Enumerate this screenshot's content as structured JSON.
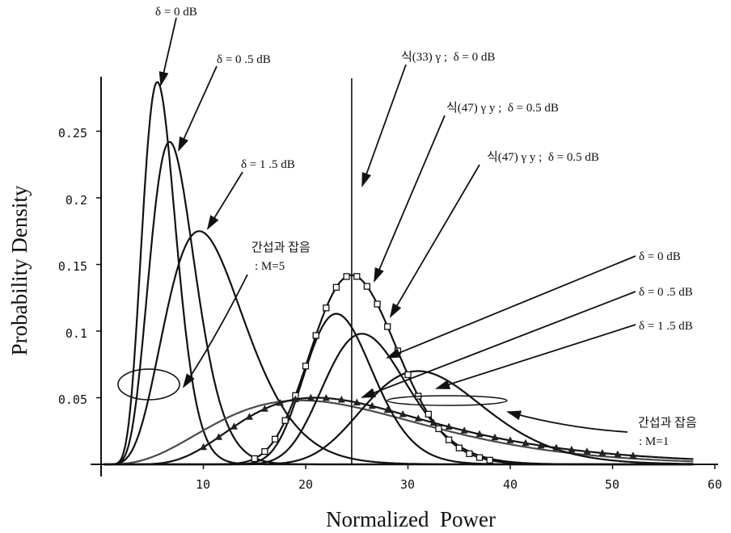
{
  "chart_data": {
    "type": "line",
    "title": "",
    "xlabel": "Normalized  Power",
    "ylabel": "Probability Density",
    "xlim": [
      0,
      60
    ],
    "ylim": [
      0,
      0.3
    ],
    "xticks": [
      "10",
      "20",
      "30",
      "40",
      "50",
      "60"
    ],
    "xtick_values": [
      10,
      20,
      30,
      40,
      50,
      60
    ],
    "yticks": [
      "0.05",
      "0.1",
      "0.15",
      "0.2",
      "0.25"
    ],
    "ytick_values": [
      0.05,
      0.1,
      0.15,
      0.2,
      0.25
    ],
    "vertical_line_x": 24.5,
    "grid": false,
    "series": [
      {
        "group": "M=5",
        "shape": "gamma",
        "mean": 5.5,
        "peak": 0.287,
        "k": 12,
        "marker": "none"
      },
      {
        "group": "M=5",
        "shape": "gamma",
        "mean": 6.7,
        "peak": 0.242,
        "k": 10,
        "marker": "none"
      },
      {
        "group": "M=5",
        "shape": "gamma",
        "mean": 9.6,
        "peak": 0.175,
        "k": 7,
        "marker": "none"
      },
      {
        "group": "M=1",
        "shape": "gamma",
        "mean": 24.5,
        "peak": 0.142,
        "k": 35,
        "marker": "square"
      },
      {
        "group": "M=1",
        "shape": "gamma",
        "mean": 19.5,
        "peak": 0.048,
        "k": 4.5,
        "marker": "none",
        "color": "#4a4a4a"
      },
      {
        "group": "M=1",
        "shape": "lognormal",
        "mode": 23.0,
        "peak": 0.113,
        "sigma": 0.145,
        "marker": "none"
      },
      {
        "group": "M=1",
        "shape": "lognormal",
        "mode": 25.5,
        "peak": 0.098,
        "sigma": 0.16,
        "marker": "none"
      },
      {
        "group": "M=1",
        "shape": "lognormal",
        "mode": 31.0,
        "peak": 0.07,
        "sigma": 0.19,
        "marker": "none"
      },
      {
        "group": "M=1",
        "shape": "lognormal",
        "mode": 21.0,
        "peak": 0.05,
        "sigma": 0.45,
        "marker": "triangle"
      }
    ],
    "annotations": {
      "d0_top": "δ = 0 dB",
      "d05_top": "δ = 0 .5 dB",
      "d15_top": "δ = 1 .5 dB",
      "noise_m5_line1": "간섭과 잡음",
      "noise_m5_line2": ": M=5",
      "eq33": "식(33) γ ;  δ = 0 dB",
      "eq47a": "식(47) γ y ;  δ = 0.5 dB",
      "eq47b": "식(47) γ y ;  δ = 0.5 dB",
      "d0_right": "δ = 0 dB",
      "d05_right": "δ = 0 .5 dB",
      "d15_right": "δ = 1 .5 dB",
      "noise_m1_line1": "간섭과 잡음",
      "noise_m1_line2": ": M=1"
    }
  }
}
